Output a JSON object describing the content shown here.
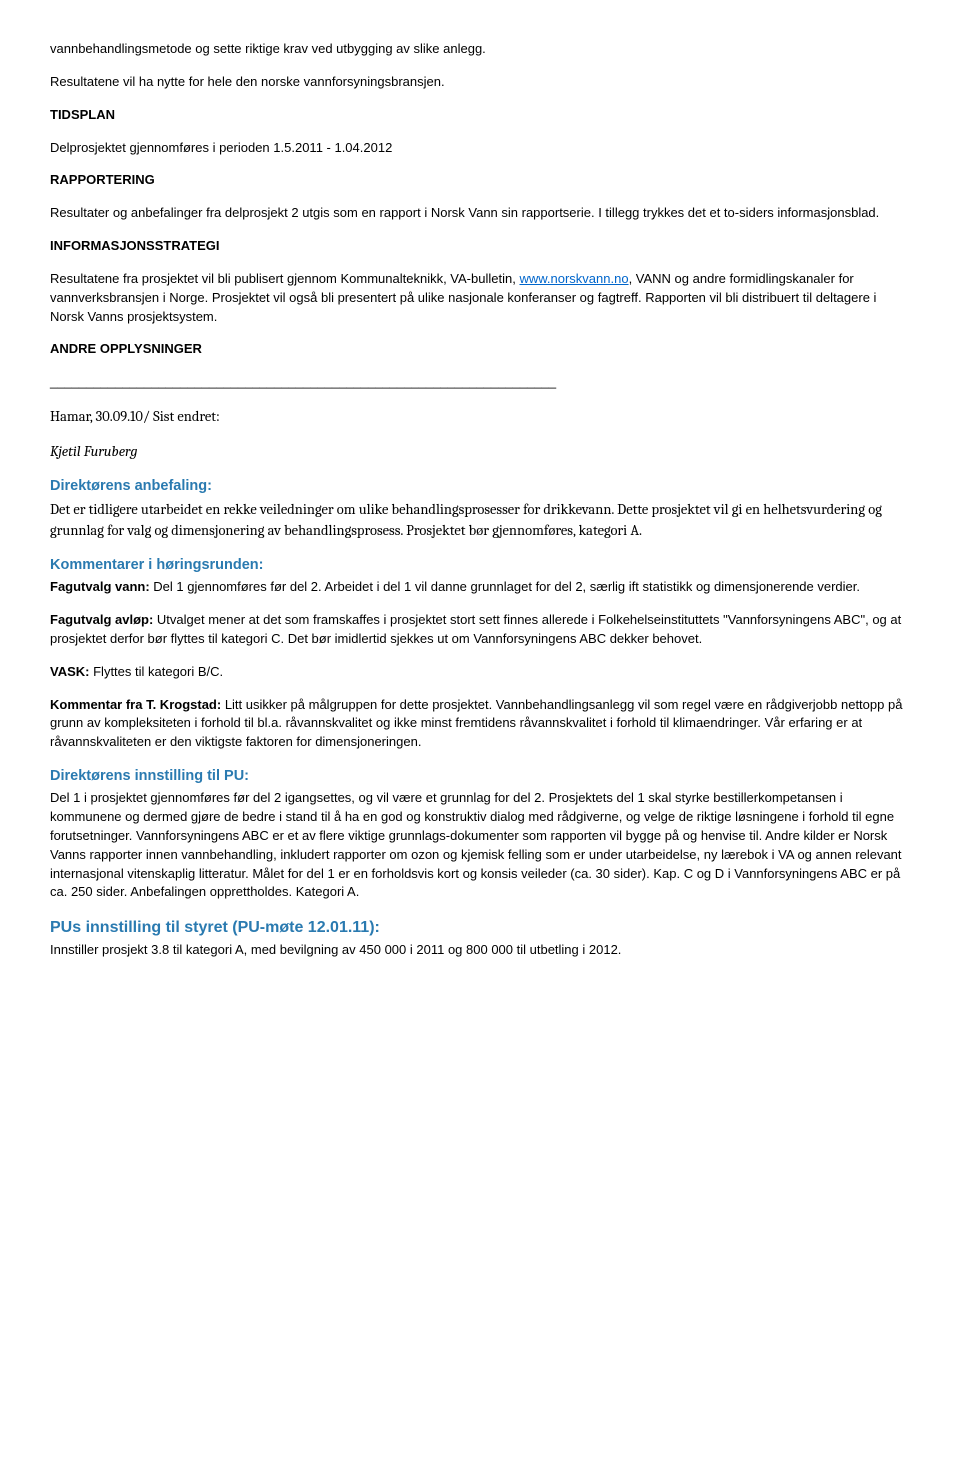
{
  "intro": {
    "p1": "vannbehandlingsmetode og sette riktige krav ved utbygging av slike anlegg.",
    "p2": "Resultatene vil ha nytte for hele den norske vannforsyningsbransjen."
  },
  "tidsplan": {
    "heading": "TIDSPLAN",
    "body": "Delprosjektet gjennomføres i perioden 1.5.2011 - 1.04.2012"
  },
  "rapportering": {
    "heading": "RAPPORTERING",
    "body": "Resultater og anbefalinger fra delprosjekt 2 utgis som en rapport i Norsk Vann sin rapportserie. I tillegg trykkes det et to-siders informasjonsblad."
  },
  "informasjonsstrategi": {
    "heading": "INFORMASJONSSTRATEGI",
    "pre_link": "Resultatene fra prosjektet vil bli publisert gjennom Kommunalteknikk, VA-bulletin, ",
    "link_text": "www.norskvann.no",
    "link_href": "http://www.norskvann.no",
    "post_link": ", VANN og andre formidlingskanaler for vannverksbransjen i Norge. Prosjektet vil også bli presentert på ulike nasjonale konferanser og fagtreff. Rapporten vil bli distribuert til deltagere i Norsk Vanns prosjektsystem."
  },
  "andre": {
    "heading": "ANDRE OPPLYSNINGER",
    "divider": "______________________________________________________________________",
    "date_line": "Hamar, 30.09.10/ Sist endret:",
    "author": "Kjetil Furuberg"
  },
  "anbefaling": {
    "heading": "Direktørens anbefaling:",
    "body": "Det er tidligere utarbeidet en rekke veiledninger om ulike behandlingsprosesser for drikkevann. Dette prosjektet vil gi en helhetsvurdering og grunnlag for valg og dimensjonering av behandlingsprosess. Prosjektet bør gjennomføres, kategori A."
  },
  "kommentarer": {
    "heading": "Kommentarer i høringsrunden:",
    "fagutvalg_vann_label": "Fagutvalg vann: ",
    "fagutvalg_vann_body": "Del 1 gjennomføres før del 2. Arbeidet i del 1 vil danne grunnlaget for del 2, særlig ift statistikk og dimensjonerende verdier.",
    "fagutvalg_avlop_label": "Fagutvalg avløp: ",
    "fagutvalg_avlop_body": "Utvalget mener at det som framskaffes i prosjektet stort sett finnes allerede i Folkehelseinstituttets \"Vannforsyningens ABC\", og at prosjektet derfor bør flyttes til kategori C. Det bør imidlertid sjekkes ut om Vannforsyningens ABC dekker behovet.",
    "vask_label": "VASK: ",
    "vask_body": "Flyttes til kategori B/C.",
    "krogstad_label": "Kommentar fra T. Krogstad: ",
    "krogstad_body": "Litt usikker på målgruppen for dette prosjektet. Vannbehandlingsanlegg vil som regel være en rådgiverjobb nettopp på grunn av kompleksiteten i forhold til bl.a. råvannskvalitet og ikke minst fremtidens råvannskvalitet i forhold til klimaendringer. Vår erfaring er at råvannskvaliteten er den viktigste faktoren for dimensjoneringen."
  },
  "innstilling_pu": {
    "heading": "Direktørens innstilling til PU:",
    "body": "Del 1 i prosjektet gjennomføres før del 2 igangsettes, og vil være et grunnlag for del 2. Prosjektets del 1 skal styrke bestillerkompetansen i kommunene og dermed gjøre de bedre i stand til å ha en god og konstruktiv dialog med rådgiverne, og velge de riktige løsningene i forhold til egne forutsetninger. Vannforsyningens ABC er et av flere viktige grunnlags-dokumenter som rapporten vil bygge på og henvise til. Andre kilder er Norsk Vanns rapporter innen vannbehandling, inkludert rapporter om ozon og kjemisk felling som er under utarbeidelse, ny lærebok i VA og annen relevant internasjonal vitenskaplig litteratur. Målet for del 1 er en forholdsvis kort og konsis veileder (ca. 30 sider).  Kap. C og D i Vannforsyningens ABC er på ca. 250 sider. Anbefalingen opprettholdes. Kategori A."
  },
  "pu_styret": {
    "heading": "PUs innstilling til styret (PU-møte 12.01.11):",
    "body": "Innstiller prosjekt 3.8 til kategori A, med bevilgning av 450 000 i 2011 og 800 000 til utbetling i 2012."
  }
}
